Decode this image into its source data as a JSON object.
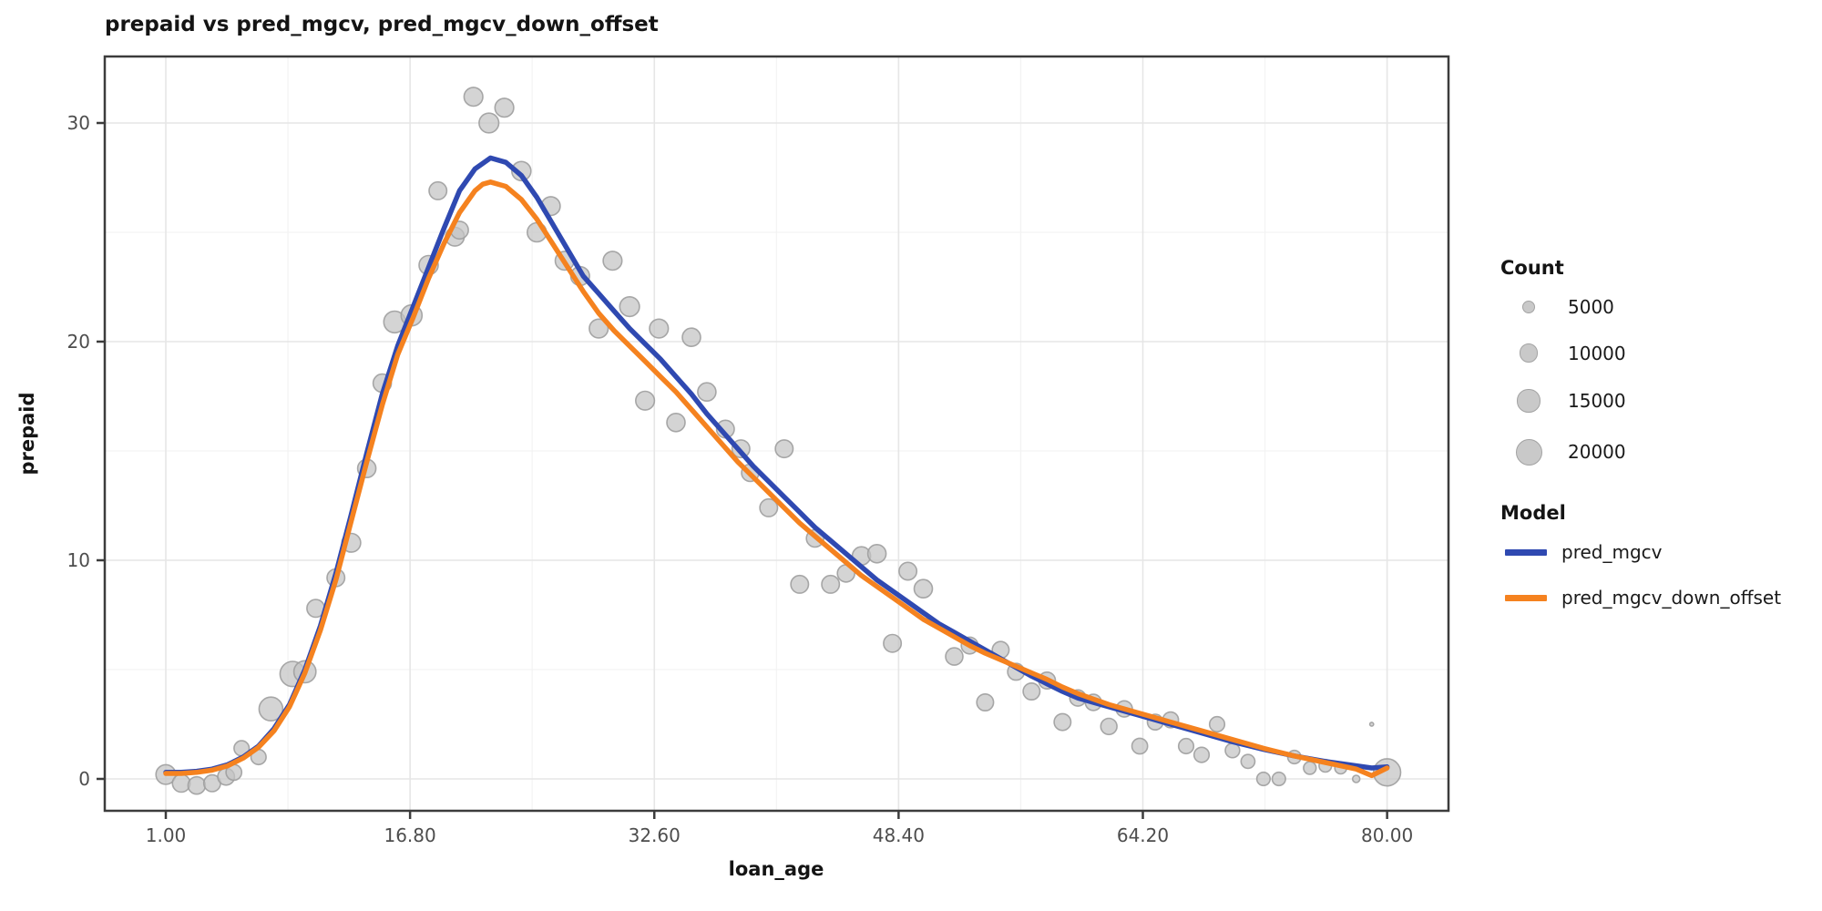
{
  "chart_data": {
    "type": "scatter",
    "title": "prepaid vs pred_mgcv, pred_mgcv_down_offset",
    "xlabel": "loan_age",
    "ylabel": "prepaid",
    "x_ticks": [
      1.0,
      16.8,
      32.6,
      48.4,
      64.2,
      80.0
    ],
    "x_tick_labels": [
      "1.00",
      "16.80",
      "32.60",
      "48.40",
      "64.20",
      "80.00"
    ],
    "x_minor_ticks": [
      8.9,
      24.7,
      40.5,
      56.3,
      72.1
    ],
    "y_ticks": [
      0,
      10,
      20,
      30
    ],
    "y_tick_labels": [
      "0",
      "10",
      "20",
      "30"
    ],
    "y_minor_ticks": [
      5,
      15,
      25
    ],
    "xlim": [
      -2.95,
      83.9
    ],
    "ylim": [
      -1.46,
      33.05
    ],
    "grid": "major+minor",
    "legend_position": "right",
    "colors": {
      "pred_mgcv": "#2F49B1",
      "pred_mgcv_down_offset": "#F5821F",
      "point_fill": "#c3c3c3",
      "point_stroke": "#9f9f9f",
      "panel_border": "#3c3c3c",
      "grid_major": "#e6e6e6",
      "grid_minor": "#f3f3f3",
      "tick_label": "#4d4d4d"
    },
    "size_legend": {
      "title": "Count",
      "items": [
        5000,
        10000,
        15000,
        20000
      ]
    },
    "color_legend": {
      "title": "Model",
      "items": [
        {
          "label": "pred_mgcv",
          "color": "#2F49B1"
        },
        {
          "label": "pred_mgcv_down_offset",
          "color": "#F5821F"
        }
      ]
    },
    "points_note": "each point = [loan_age, prepaid, count]",
    "points": [
      [
        1,
        0.2,
        11000
      ],
      [
        2,
        -0.2,
        9000
      ],
      [
        3,
        -0.3,
        8500
      ],
      [
        4,
        -0.2,
        8000
      ],
      [
        4.9,
        0.1,
        8000
      ],
      [
        5.4,
        0.3,
        7000
      ],
      [
        5.9,
        1.4,
        6500
      ],
      [
        7,
        1.0,
        6500
      ],
      [
        7.8,
        3.2,
        16000
      ],
      [
        9.2,
        4.8,
        18000
      ],
      [
        10,
        4.9,
        14000
      ],
      [
        10.7,
        7.8,
        9000
      ],
      [
        12,
        9.2,
        9000
      ],
      [
        13,
        10.8,
        10000
      ],
      [
        14,
        14.2,
        9500
      ],
      [
        15,
        18.1,
        9500
      ],
      [
        15.8,
        20.9,
        13500
      ],
      [
        16.9,
        21.2,
        12500
      ],
      [
        18,
        23.5,
        10500
      ],
      [
        18.6,
        26.9,
        9000
      ],
      [
        19.7,
        24.8,
        10000
      ],
      [
        20,
        25.1,
        9000
      ],
      [
        20.9,
        31.2,
        10000
      ],
      [
        21.9,
        30.0,
        11000
      ],
      [
        22.9,
        30.7,
        10000
      ],
      [
        24,
        27.8,
        10500
      ],
      [
        25,
        25.0,
        10500
      ],
      [
        25.9,
        26.2,
        10000
      ],
      [
        26.8,
        23.7,
        10000
      ],
      [
        27.8,
        23.0,
        10000
      ],
      [
        29,
        20.6,
        10000
      ],
      [
        29.9,
        23.7,
        10000
      ],
      [
        31,
        21.6,
        11000
      ],
      [
        32,
        17.3,
        10000
      ],
      [
        32.9,
        20.6,
        10000
      ],
      [
        34,
        16.3,
        9500
      ],
      [
        35,
        20.2,
        9500
      ],
      [
        36,
        17.7,
        9500
      ],
      [
        37.2,
        16.0,
        9000
      ],
      [
        38.2,
        15.1,
        9000
      ],
      [
        38.8,
        14.0,
        8500
      ],
      [
        40,
        12.4,
        9000
      ],
      [
        41,
        15.1,
        9000
      ],
      [
        42,
        8.9,
        9000
      ],
      [
        43,
        11.0,
        8500
      ],
      [
        44,
        8.9,
        9000
      ],
      [
        45,
        9.4,
        8500
      ],
      [
        46,
        10.2,
        9500
      ],
      [
        47,
        10.3,
        9500
      ],
      [
        48,
        6.2,
        9000
      ],
      [
        49,
        9.5,
        9000
      ],
      [
        50,
        8.7,
        9500
      ],
      [
        52,
        5.6,
        8500
      ],
      [
        53,
        6.1,
        8000
      ],
      [
        54,
        3.5,
        8000
      ],
      [
        55,
        5.9,
        8000
      ],
      [
        56,
        4.9,
        8000
      ],
      [
        57,
        4.0,
        8000
      ],
      [
        58,
        4.5,
        8000
      ],
      [
        59,
        2.6,
        8000
      ],
      [
        60,
        3.7,
        7500
      ],
      [
        61,
        3.5,
        7500
      ],
      [
        62,
        2.4,
        7500
      ],
      [
        63,
        3.2,
        7500
      ],
      [
        64,
        1.5,
        7000
      ],
      [
        65,
        2.6,
        7000
      ],
      [
        66,
        2.7,
        7000
      ],
      [
        67,
        1.5,
        6500
      ],
      [
        68,
        1.1,
        6500
      ],
      [
        69,
        2.5,
        6500
      ],
      [
        70,
        1.3,
        6000
      ],
      [
        71,
        0.8,
        5500
      ],
      [
        72,
        0.0,
        5000
      ],
      [
        73,
        0.0,
        5000
      ],
      [
        74,
        1.0,
        5000
      ],
      [
        75,
        0.5,
        4500
      ],
      [
        76,
        0.6,
        4500
      ],
      [
        77,
        0.5,
        4000
      ],
      [
        78,
        0.0,
        1500
      ],
      [
        79,
        2.5,
        400
      ],
      [
        80,
        0.3,
        21000
      ]
    ],
    "series": [
      {
        "name": "pred_mgcv",
        "color": "#2F49B1",
        "points": [
          [
            1,
            0.3
          ],
          [
            2,
            0.3
          ],
          [
            3,
            0.35
          ],
          [
            4,
            0.45
          ],
          [
            5,
            0.65
          ],
          [
            6,
            1.0
          ],
          [
            7,
            1.5
          ],
          [
            8,
            2.3
          ],
          [
            9,
            3.4
          ],
          [
            10,
            5.0
          ],
          [
            11,
            7.0
          ],
          [
            12,
            9.4
          ],
          [
            13,
            12.1
          ],
          [
            14,
            14.9
          ],
          [
            15,
            17.6
          ],
          [
            16,
            19.8
          ],
          [
            17,
            21.6
          ],
          [
            18,
            23.4
          ],
          [
            19,
            25.2
          ],
          [
            20,
            26.9
          ],
          [
            21,
            27.9
          ],
          [
            22,
            28.4
          ],
          [
            23,
            28.2
          ],
          [
            24,
            27.6
          ],
          [
            25,
            26.6
          ],
          [
            26,
            25.4
          ],
          [
            27,
            24.2
          ],
          [
            28,
            23.0
          ],
          [
            29,
            22.2
          ],
          [
            30,
            21.4
          ],
          [
            31,
            20.6
          ],
          [
            32,
            19.9
          ],
          [
            33,
            19.2
          ],
          [
            34,
            18.4
          ],
          [
            35,
            17.6
          ],
          [
            36,
            16.7
          ],
          [
            37,
            15.9
          ],
          [
            38,
            15.1
          ],
          [
            39,
            14.3
          ],
          [
            40,
            13.6
          ],
          [
            41,
            12.9
          ],
          [
            42,
            12.2
          ],
          [
            43,
            11.5
          ],
          [
            44,
            10.9
          ],
          [
            45,
            10.3
          ],
          [
            46,
            9.7
          ],
          [
            47,
            9.1
          ],
          [
            48,
            8.6
          ],
          [
            49,
            8.1
          ],
          [
            50,
            7.6
          ],
          [
            51,
            7.1
          ],
          [
            52,
            6.7
          ],
          [
            53,
            6.3
          ],
          [
            54,
            5.9
          ],
          [
            55,
            5.5
          ],
          [
            56,
            5.1
          ],
          [
            57,
            4.7
          ],
          [
            58,
            4.35
          ],
          [
            59,
            4.0
          ],
          [
            60,
            3.7
          ],
          [
            62,
            3.3
          ],
          [
            64,
            2.9
          ],
          [
            66,
            2.5
          ],
          [
            68,
            2.1
          ],
          [
            70,
            1.7
          ],
          [
            72,
            1.35
          ],
          [
            74,
            1.05
          ],
          [
            76,
            0.8
          ],
          [
            78,
            0.6
          ],
          [
            79,
            0.5
          ],
          [
            80,
            0.55
          ]
        ]
      },
      {
        "name": "pred_mgcv_down_offset",
        "color": "#F5821F",
        "points": [
          [
            1,
            0.25
          ],
          [
            2,
            0.25
          ],
          [
            3,
            0.3
          ],
          [
            4,
            0.4
          ],
          [
            5,
            0.6
          ],
          [
            6,
            0.95
          ],
          [
            7,
            1.45
          ],
          [
            8,
            2.2
          ],
          [
            9,
            3.3
          ],
          [
            10,
            4.85
          ],
          [
            11,
            6.8
          ],
          [
            12,
            9.1
          ],
          [
            13,
            11.8
          ],
          [
            14,
            14.5
          ],
          [
            15,
            17.1
          ],
          [
            16,
            19.4
          ],
          [
            17,
            21.1
          ],
          [
            18,
            22.9
          ],
          [
            19,
            24.5
          ],
          [
            20,
            25.9
          ],
          [
            21,
            26.9
          ],
          [
            21.5,
            27.2
          ],
          [
            22,
            27.3
          ],
          [
            23,
            27.1
          ],
          [
            24,
            26.5
          ],
          [
            25,
            25.6
          ],
          [
            26,
            24.5
          ],
          [
            27,
            23.4
          ],
          [
            28,
            22.3
          ],
          [
            29,
            21.3
          ],
          [
            30,
            20.5
          ],
          [
            31,
            19.8
          ],
          [
            32,
            19.1
          ],
          [
            33,
            18.4
          ],
          [
            34,
            17.7
          ],
          [
            35,
            16.9
          ],
          [
            36,
            16.1
          ],
          [
            37,
            15.3
          ],
          [
            38,
            14.5
          ],
          [
            39,
            13.8
          ],
          [
            40,
            13.1
          ],
          [
            41,
            12.4
          ],
          [
            42,
            11.7
          ],
          [
            43,
            11.1
          ],
          [
            44,
            10.5
          ],
          [
            45,
            9.9
          ],
          [
            46,
            9.3
          ],
          [
            47,
            8.8
          ],
          [
            48,
            8.3
          ],
          [
            49,
            7.8
          ],
          [
            50,
            7.3
          ],
          [
            51,
            6.9
          ],
          [
            52,
            6.5
          ],
          [
            53,
            6.1
          ],
          [
            54,
            5.75
          ],
          [
            55,
            5.45
          ],
          [
            56,
            5.15
          ],
          [
            57,
            4.85
          ],
          [
            58,
            4.55
          ],
          [
            59,
            4.2
          ],
          [
            60,
            3.9
          ],
          [
            62,
            3.4
          ],
          [
            64,
            3.0
          ],
          [
            66,
            2.6
          ],
          [
            68,
            2.2
          ],
          [
            70,
            1.8
          ],
          [
            72,
            1.4
          ],
          [
            74,
            1.05
          ],
          [
            76,
            0.75
          ],
          [
            78,
            0.45
          ],
          [
            79,
            0.15
          ],
          [
            80,
            0.5
          ]
        ]
      }
    ],
    "point_style": {
      "max_radius_px": 14.5,
      "max_count": 20000
    }
  }
}
